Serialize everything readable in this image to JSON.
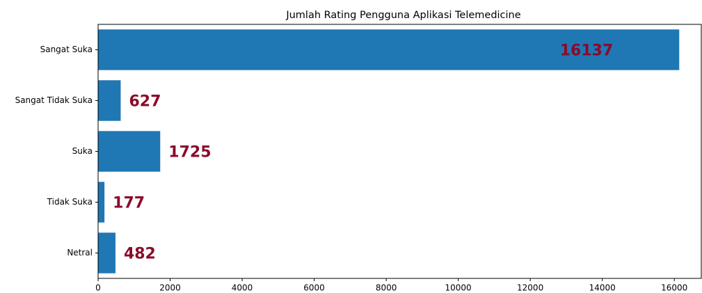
{
  "chart_data": {
    "type": "barh",
    "title": "Jumlah Rating Pengguna Aplikasi Telemedicine",
    "categories": [
      "Sangat Suka",
      "Sangat Tidak Suka",
      "Suka",
      "Tidak Suka",
      "Netral"
    ],
    "values": [
      16137,
      627,
      1725,
      177,
      482
    ],
    "color": "#1f77b4",
    "label_color": "#8b0a2a",
    "xlim": [
      0,
      16750
    ],
    "xticks": [
      0,
      2000,
      4000,
      6000,
      8000,
      10000,
      12000,
      14000,
      16000
    ]
  }
}
